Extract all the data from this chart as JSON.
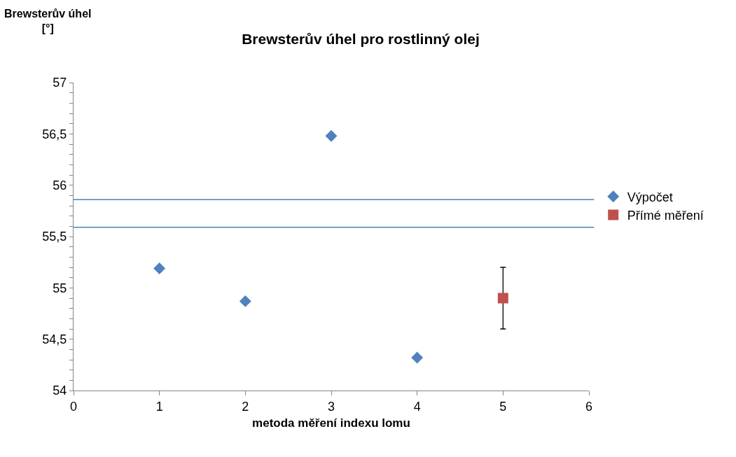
{
  "chart_data": {
    "type": "scatter",
    "title": "Brewsterův úhel pro rostlinný olej",
    "xlabel": "metoda měření indexu lomu",
    "ylabel": "Brewsterův úhel [°]",
    "series": [
      {
        "name": "Výpočet",
        "color": "#4f81bd",
        "marker": "diamond",
        "x": [
          1,
          2,
          3,
          4
        ],
        "values": [
          55.19,
          54.87,
          56.48,
          54.32
        ]
      },
      {
        "name": "Přímé měření",
        "color": "#c0504d",
        "marker": "square",
        "x": [
          5
        ],
        "values": [
          54.9
        ],
        "errors": [
          0.3
        ]
      }
    ],
    "ref_lines": [
      {
        "axis": "y",
        "value": 55.86,
        "color": "#4f81bd"
      },
      {
        "axis": "y",
        "value": 55.59,
        "color": "#4f81bd"
      }
    ],
    "xlim": [
      0,
      6
    ],
    "xticks": [
      0,
      1,
      2,
      3,
      4,
      5,
      6
    ],
    "ylim": [
      54,
      57
    ],
    "yticks": [
      54,
      {
        "value": 54.1,
        "label": null
      },
      {
        "value": 54.2,
        "label": null
      },
      {
        "value": 54.3,
        "label": null
      },
      {
        "value": 54.4,
        "label": null
      },
      {
        "value": 54.5,
        "label": "54,5"
      },
      {
        "value": 54.6,
        "label": null
      },
      {
        "value": 54.7,
        "label": null
      },
      {
        "value": 54.8,
        "label": null
      },
      {
        "value": 54.9,
        "label": null
      },
      55,
      {
        "value": 55.1,
        "label": null
      },
      {
        "value": 55.2,
        "label": null
      },
      {
        "value": 55.3,
        "label": null
      },
      {
        "value": 55.4,
        "label": null
      },
      {
        "value": 55.5,
        "label": "55,5"
      },
      {
        "value": 55.6,
        "label": null
      },
      {
        "value": 55.7,
        "label": null
      },
      {
        "value": 55.8,
        "label": null
      },
      {
        "value": 55.9,
        "label": null
      },
      56,
      {
        "value": 56.1,
        "label": null
      },
      {
        "value": 56.2,
        "label": null
      },
      {
        "value": 56.3,
        "label": null
      },
      {
        "value": 56.4,
        "label": null
      },
      {
        "value": 56.5,
        "label": "56,5"
      },
      {
        "value": 56.6,
        "label": null
      },
      {
        "value": 56.7,
        "label": null
      },
      {
        "value": 56.8,
        "label": null
      },
      {
        "value": 56.9,
        "label": null
      },
      57
    ],
    "legend": "right"
  }
}
